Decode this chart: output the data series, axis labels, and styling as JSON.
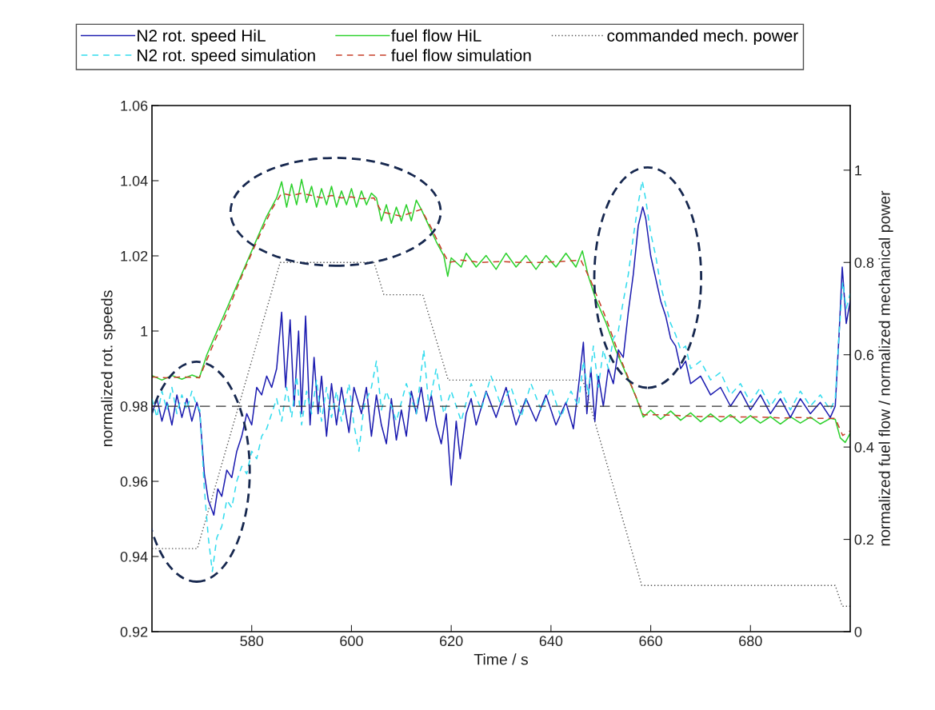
{
  "chart_data": {
    "type": "line",
    "xlabel": "Time / s",
    "ylabel": "normalized rot. speeds",
    "y2label": "normalized fuel flow / normalized mechanical power",
    "xlim": [
      560,
      700
    ],
    "xticks": [
      580,
      600,
      620,
      640,
      660,
      680
    ],
    "ylim": [
      0.92,
      1.06
    ],
    "yticks": [
      0.92,
      0.94,
      0.96,
      0.98,
      1,
      1.02,
      1.04,
      1.06
    ],
    "y2lim": [
      0,
      1.14
    ],
    "y2ticks": [
      0,
      0.2,
      0.4,
      0.6,
      0.8,
      1
    ],
    "grid": false,
    "legend": "top",
    "marker": "none",
    "ref_lines": [
      {
        "axis": "y",
        "value": 0.98,
        "color": "#333333",
        "line_style": "dashed"
      }
    ],
    "series": [
      {
        "name": "N2 rot. speed HiL",
        "color": "#1c1cb0",
        "line_style": "solid",
        "x": [
          560,
          561,
          562,
          563,
          564,
          565,
          566,
          567,
          568,
          569,
          569.6,
          570.5,
          571.3,
          572.4,
          573.2,
          574,
          575,
          576,
          577,
          578,
          579,
          580,
          581,
          582,
          583,
          584,
          585,
          586,
          586.8,
          587.7,
          588.5,
          589.4,
          590,
          590.8,
          591.7,
          592.5,
          593.3,
          594,
          595,
          596,
          597,
          598,
          599.5,
          600.5,
          602,
          603,
          604,
          605,
          606,
          607,
          608,
          609,
          610,
          611,
          612,
          613,
          614,
          615,
          616,
          617,
          618,
          619,
          620,
          621,
          621.8,
          623,
          624,
          625,
          627,
          629,
          631,
          633,
          635,
          637,
          639,
          641,
          643,
          644.5,
          645.5,
          646.5,
          647.2,
          648,
          648.8,
          649.5,
          650.5,
          651.5,
          652.5,
          653.5,
          654.5,
          655.5,
          656.5,
          657.5,
          658.4,
          659,
          660,
          661,
          662,
          663,
          664,
          665,
          666,
          667,
          668,
          670,
          672,
          674,
          676,
          678,
          680,
          682,
          684,
          686,
          688,
          690,
          692,
          694,
          696,
          697,
          697.8,
          698.4,
          699.2,
          700
        ],
        "values": [
          0.978,
          0.982,
          0.976,
          0.981,
          0.975,
          0.983,
          0.977,
          0.982,
          0.976,
          0.981,
          0.978,
          0.962,
          0.955,
          0.951,
          0.958,
          0.956,
          0.963,
          0.961,
          0.968,
          0.972,
          0.978,
          0.975,
          0.985,
          0.983,
          0.988,
          0.985,
          0.99,
          1.005,
          0.985,
          1.003,
          0.98,
          1.0,
          0.978,
          1.004,
          0.975,
          0.993,
          0.978,
          0.988,
          0.972,
          0.986,
          0.975,
          0.985,
          0.973,
          0.985,
          0.978,
          0.985,
          0.972,
          0.983,
          0.975,
          0.97,
          0.982,
          0.971,
          0.979,
          0.972,
          0.984,
          0.978,
          0.985,
          0.976,
          0.983,
          0.975,
          0.97,
          0.978,
          0.959,
          0.976,
          0.966,
          0.978,
          0.982,
          0.975,
          0.984,
          0.977,
          0.985,
          0.975,
          0.982,
          0.976,
          0.983,
          0.975,
          0.981,
          0.974,
          0.985,
          0.997,
          0.978,
          0.99,
          0.976,
          0.988,
          0.98,
          0.99,
          0.986,
          0.995,
          0.993,
          1.005,
          1.015,
          1.028,
          1.033,
          1.03,
          1.02,
          1.014,
          1.008,
          1.004,
          0.998,
          0.996,
          0.99,
          0.992,
          0.986,
          0.988,
          0.983,
          0.985,
          0.98,
          0.984,
          0.979,
          0.983,
          0.978,
          0.982,
          0.977,
          0.982,
          0.978,
          0.981,
          0.977,
          0.98,
          1.0,
          1.017,
          1.002,
          1.008
        ]
      },
      {
        "name": "N2 rot. speed simulation",
        "color": "#33dcee",
        "line_style": "dashed",
        "x": [
          560,
          561,
          562,
          563,
          564,
          565,
          566,
          567,
          568,
          569,
          569.6,
          570.5,
          571.3,
          572.1,
          573,
          574,
          575,
          576,
          577,
          578,
          579,
          580,
          581,
          582,
          583,
          584,
          585,
          586,
          587,
          588,
          589,
          590,
          591,
          592,
          593,
          594,
          595,
          596,
          597,
          598,
          599.5,
          600.5,
          601.5,
          602.5,
          604,
          605,
          606,
          607,
          609,
          611,
          613,
          614.5,
          615.5,
          617,
          618.5,
          620,
          622,
          624,
          626,
          628,
          630,
          632,
          634,
          636,
          638,
          640,
          642,
          644,
          645.5,
          646.5,
          647.5,
          648.5,
          649.5,
          650.5,
          651.5,
          652.5,
          653.5,
          654.5,
          655.5,
          656.5,
          657.5,
          658.3,
          659,
          660,
          661,
          662,
          663,
          664,
          665,
          666,
          667,
          668,
          670,
          672,
          674,
          676,
          678,
          680,
          682,
          684,
          686,
          688,
          690,
          692,
          694,
          696,
          697,
          697.8,
          698.5,
          699.2,
          700
        ],
        "values": [
          0.982,
          0.977,
          0.984,
          0.979,
          0.985,
          0.978,
          0.983,
          0.979,
          0.984,
          0.98,
          0.979,
          0.958,
          0.945,
          0.936,
          0.945,
          0.948,
          0.955,
          0.953,
          0.96,
          0.964,
          0.962,
          0.968,
          0.966,
          0.972,
          0.974,
          0.978,
          0.982,
          0.976,
          0.985,
          0.977,
          0.988,
          0.975,
          0.984,
          0.978,
          0.987,
          0.976,
          0.985,
          0.977,
          0.984,
          0.976,
          0.986,
          0.975,
          0.968,
          0.98,
          0.985,
          0.992,
          0.979,
          0.984,
          0.976,
          0.986,
          0.978,
          0.995,
          0.98,
          0.99,
          0.978,
          0.984,
          0.976,
          0.986,
          0.979,
          0.988,
          0.98,
          0.985,
          0.977,
          0.986,
          0.979,
          0.985,
          0.977,
          0.984,
          0.98,
          0.992,
          0.983,
          0.996,
          0.985,
          0.995,
          0.99,
          0.998,
          1.0,
          1.008,
          1.015,
          1.025,
          1.034,
          1.04,
          1.035,
          1.026,
          1.02,
          1.012,
          1.007,
          1.002,
          0.999,
          0.995,
          0.996,
          0.99,
          0.992,
          0.987,
          0.989,
          0.983,
          0.986,
          0.981,
          0.985,
          0.98,
          0.984,
          0.979,
          0.984,
          0.98,
          0.983,
          0.979,
          0.982,
          1.0,
          1.013,
          1.006,
          1.01
        ]
      },
      {
        "name": "fuel flow HiL",
        "color": "#2ed12e",
        "line_style": "solid",
        "axis": "y2",
        "x": [
          560,
          562,
          564,
          566,
          568,
          569.5,
          571,
          573,
          575,
          577,
          579,
          581,
          583,
          585,
          586,
          587,
          588,
          589,
          590,
          591,
          592,
          593,
          594,
          595,
          596,
          597,
          598,
          599,
          600,
          601,
          602,
          603,
          604,
          605,
          606,
          607,
          608,
          609,
          610,
          611,
          612,
          613,
          614,
          615.5,
          617,
          618.5,
          619.3,
          620,
          622,
          623,
          625,
          627,
          629,
          631,
          633,
          635,
          637,
          639,
          641,
          643,
          645,
          646.3,
          647.5,
          649,
          651,
          653,
          655,
          657,
          658.5,
          660,
          662,
          664,
          666,
          668,
          670,
          672,
          674,
          676,
          678,
          680,
          682,
          684,
          686,
          688,
          690,
          692,
          694,
          696,
          697,
          698,
          699,
          700
        ],
        "values": [
          0.555,
          0.545,
          0.555,
          0.547,
          0.556,
          0.55,
          0.6,
          0.65,
          0.7,
          0.75,
          0.8,
          0.85,
          0.9,
          0.94,
          0.975,
          0.92,
          0.97,
          0.925,
          0.98,
          0.93,
          0.965,
          0.92,
          0.96,
          0.925,
          0.965,
          0.92,
          0.955,
          0.925,
          0.96,
          0.92,
          0.955,
          0.925,
          0.95,
          0.94,
          0.89,
          0.925,
          0.885,
          0.92,
          0.89,
          0.925,
          0.89,
          0.935,
          0.915,
          0.88,
          0.845,
          0.815,
          0.77,
          0.81,
          0.79,
          0.82,
          0.79,
          0.815,
          0.785,
          0.82,
          0.79,
          0.815,
          0.785,
          0.815,
          0.79,
          0.82,
          0.79,
          0.825,
          0.77,
          0.72,
          0.67,
          0.61,
          0.56,
          0.51,
          0.465,
          0.48,
          0.46,
          0.478,
          0.458,
          0.474,
          0.455,
          0.472,
          0.455,
          0.47,
          0.452,
          0.468,
          0.452,
          0.466,
          0.45,
          0.466,
          0.452,
          0.465,
          0.45,
          0.462,
          0.46,
          0.42,
          0.41,
          0.43
        ]
      },
      {
        "name": "fuel flow simulation",
        "color": "#c8402a",
        "line_style": "dashed",
        "axis": "y2",
        "x": [
          560,
          563,
          566,
          569.5,
          572,
          575,
          578,
          581,
          584,
          586,
          588,
          590,
          592,
          594,
          596,
          598,
          600,
          602,
          604.5,
          606,
          608,
          610,
          612,
          614,
          616,
          618,
          619.5,
          622,
          626,
          630,
          634,
          638,
          642,
          646,
          648,
          651,
          654,
          657,
          658.5,
          662,
          666,
          670,
          674,
          678,
          682,
          686,
          690,
          694,
          697,
          698.5,
          700
        ],
        "values": [
          0.552,
          0.55,
          0.552,
          0.55,
          0.615,
          0.69,
          0.77,
          0.845,
          0.915,
          0.95,
          0.945,
          0.95,
          0.945,
          0.94,
          0.945,
          0.94,
          0.942,
          0.938,
          0.94,
          0.91,
          0.905,
          0.9,
          0.908,
          0.915,
          0.875,
          0.83,
          0.8,
          0.805,
          0.8,
          0.802,
          0.8,
          0.8,
          0.802,
          0.805,
          0.76,
          0.68,
          0.59,
          0.51,
          0.47,
          0.47,
          0.468,
          0.466,
          0.466,
          0.465,
          0.465,
          0.463,
          0.464,
          0.462,
          0.462,
          0.425,
          0.435
        ]
      },
      {
        "name": "commanded mech. power",
        "color": "#555555",
        "line_style": "dotted",
        "axis": "y2",
        "x": [
          560,
          569.1,
          585.7,
          604.5,
          606.5,
          614.3,
          619.4,
          646.4,
          658.2,
          697,
          698.4,
          700
        ],
        "values": [
          0.18,
          0.18,
          0.8,
          0.8,
          0.73,
          0.73,
          0.545,
          0.545,
          0.1,
          0.1,
          0.055,
          0.055
        ]
      }
    ]
  }
}
